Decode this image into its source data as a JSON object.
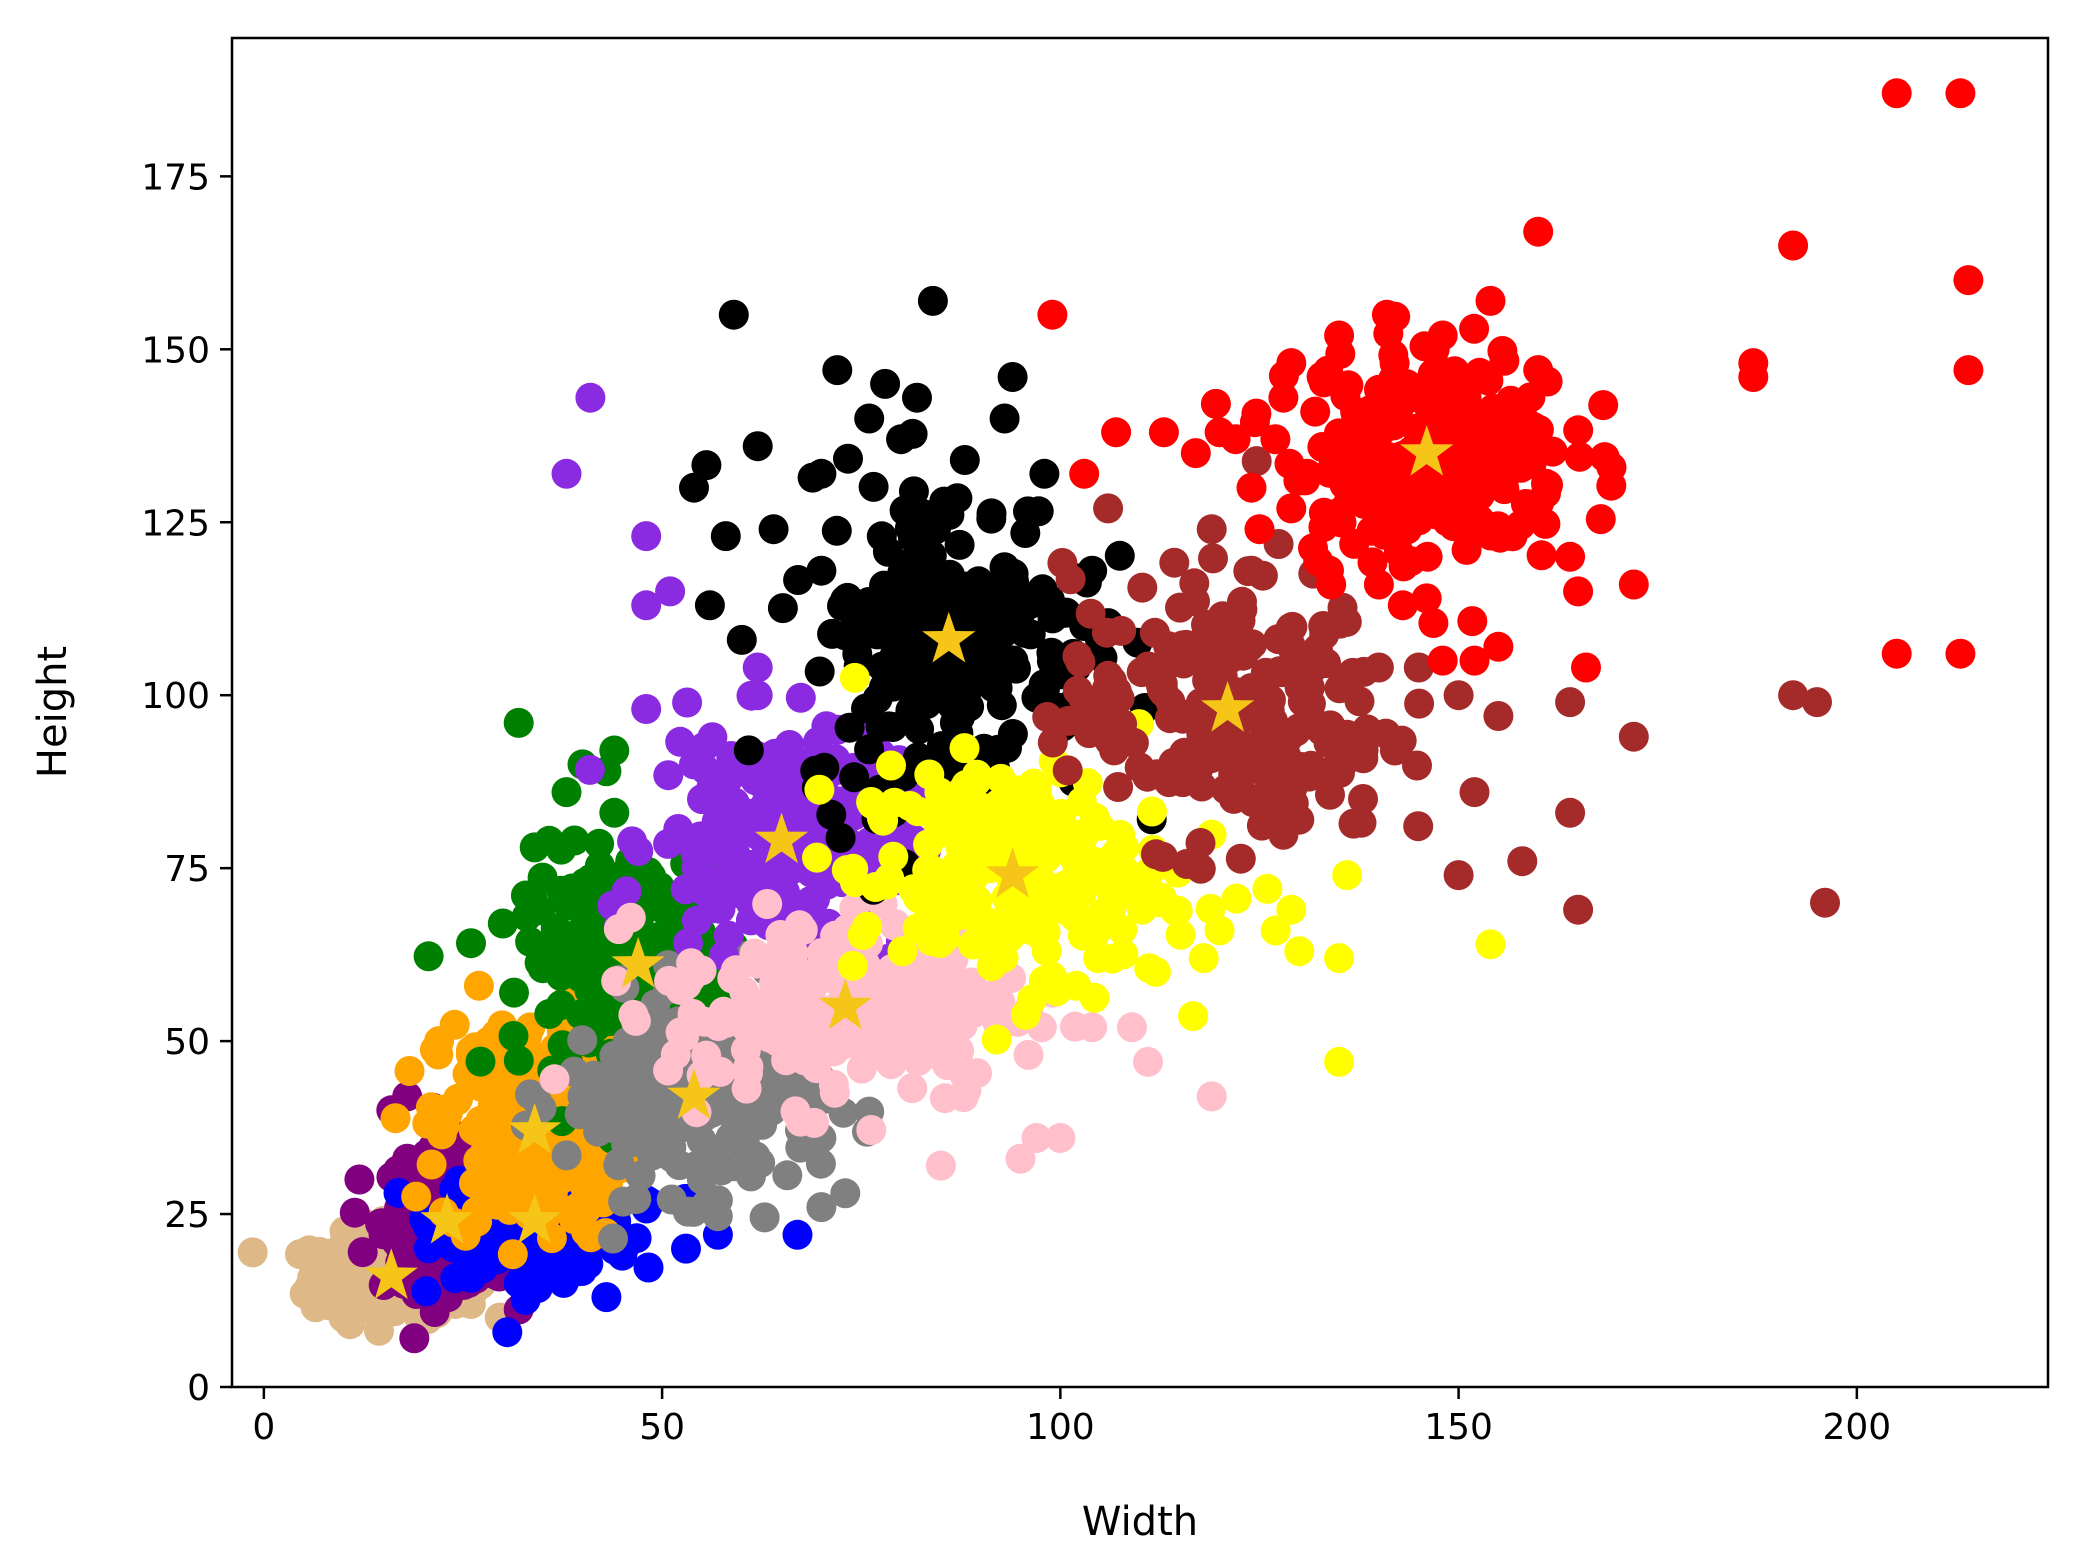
{
  "chart_data": {
    "type": "scatter",
    "title": "",
    "xlabel": "Width",
    "ylabel": "Height",
    "xlim": [
      -4,
      224
    ],
    "ylim": [
      0,
      195
    ],
    "xticks": [
      0,
      50,
      100,
      150,
      200
    ],
    "yticks": [
      0,
      25,
      50,
      75,
      100,
      125,
      150,
      175
    ],
    "grid": false,
    "legend": "none",
    "centroid_color": "#f5c518",
    "clusters": [
      {
        "color": "#deb887",
        "centroid": [
          16,
          16
        ],
        "spread": [
          5,
          3
        ],
        "points": [
          [
            7,
            16
          ],
          [
            9,
            13
          ],
          [
            10,
            10
          ],
          [
            12,
            18
          ],
          [
            14,
            20
          ],
          [
            18,
            19
          ],
          [
            20,
            10
          ],
          [
            22,
            14
          ],
          [
            24,
            12
          ],
          [
            26,
            12
          ],
          [
            15,
            24
          ]
        ]
      },
      {
        "color": "#800080",
        "centroid": [
          23,
          24
        ],
        "spread": [
          4,
          5
        ],
        "points": [
          [
            12,
            30
          ],
          [
            16,
            40
          ],
          [
            18,
            42
          ],
          [
            28,
            30
          ],
          [
            22,
            20
          ],
          [
            26,
            28
          ],
          [
            18,
            33
          ],
          [
            30,
            25
          ]
        ]
      },
      {
        "color": "#0000ff",
        "centroid": [
          34,
          24
        ],
        "spread": [
          6,
          4
        ],
        "points": [
          [
            43,
            13
          ],
          [
            45,
            19
          ],
          [
            48,
            27
          ],
          [
            53,
            20
          ],
          [
            57,
            22
          ],
          [
            67,
            22
          ],
          [
            32,
            15
          ],
          [
            40,
            27
          ]
        ]
      },
      {
        "color": "#ffa500",
        "centroid": [
          34,
          37
        ],
        "spread": [
          6,
          8
        ],
        "points": [
          [
            27,
            58
          ],
          [
            22,
            50
          ],
          [
            26,
            48
          ],
          [
            46,
            32
          ],
          [
            30,
            35
          ],
          [
            38,
            46
          ]
        ]
      },
      {
        "color": "#008000",
        "centroid": [
          47,
          61
        ],
        "spread": [
          7,
          8
        ],
        "points": [
          [
            32,
            96
          ],
          [
            38,
            86
          ],
          [
            40,
            90
          ],
          [
            43,
            89
          ],
          [
            44,
            92
          ],
          [
            34,
            78
          ],
          [
            39,
            79
          ],
          [
            44,
            83
          ],
          [
            30,
            67
          ],
          [
            33,
            68
          ],
          [
            46,
            76
          ],
          [
            56,
            64
          ]
        ]
      },
      {
        "color": "#808080",
        "centroid": [
          54,
          42
        ],
        "spread": [
          8,
          7
        ],
        "points": [
          [
            57,
            27
          ],
          [
            55,
            30
          ],
          [
            70,
            26
          ],
          [
            73,
            28
          ],
          [
            70,
            36
          ],
          [
            40,
            42
          ],
          [
            62,
            50
          ],
          [
            67,
            45
          ]
        ]
      },
      {
        "color": "#8a2be2",
        "centroid": [
          65,
          79
        ],
        "spread": [
          8,
          8
        ],
        "points": [
          [
            41,
            143
          ],
          [
            38,
            132
          ],
          [
            48,
            123
          ],
          [
            48,
            113
          ],
          [
            51,
            115
          ],
          [
            48,
            98
          ],
          [
            62,
            104
          ],
          [
            62,
            100
          ],
          [
            72,
            95
          ],
          [
            54,
            90
          ],
          [
            78,
            80
          ]
        ]
      },
      {
        "color": "#ffc0cb",
        "centroid": [
          73,
          55
        ],
        "spread": [
          11,
          7
        ],
        "points": [
          [
            85,
            32
          ],
          [
            95,
            33
          ],
          [
            97,
            36
          ],
          [
            100,
            36
          ],
          [
            104,
            52
          ],
          [
            109,
            52
          ],
          [
            119,
            42
          ],
          [
            111,
            47
          ],
          [
            96,
            48
          ],
          [
            92,
            55
          ],
          [
            88,
            45
          ],
          [
            99,
            57
          ]
        ]
      },
      {
        "color": "#000000",
        "centroid": [
          86,
          108
        ],
        "spread": [
          9,
          12
        ],
        "points": [
          [
            59,
            155
          ],
          [
            84,
            157
          ],
          [
            72,
            147
          ],
          [
            78,
            145
          ],
          [
            82,
            143
          ],
          [
            94,
            146
          ],
          [
            62,
            136
          ],
          [
            54,
            130
          ],
          [
            58,
            123
          ],
          [
            64,
            124
          ],
          [
            70,
            132
          ],
          [
            76,
            140
          ],
          [
            80,
            137
          ],
          [
            88,
            134
          ],
          [
            93,
            140
          ],
          [
            98,
            132
          ],
          [
            56,
            113
          ],
          [
            60,
            108
          ],
          [
            102,
            104
          ],
          [
            104,
            118
          ],
          [
            103,
            110
          ],
          [
            70,
            118
          ]
        ]
      },
      {
        "color": "#ffff00",
        "centroid": [
          94,
          74
        ],
        "spread": [
          10,
          8
        ],
        "points": [
          [
            136,
            74
          ],
          [
            135,
            62
          ],
          [
            130,
            63
          ],
          [
            129,
            69
          ],
          [
            135,
            47
          ],
          [
            154,
            64
          ],
          [
            126,
            72
          ],
          [
            118,
            62
          ],
          [
            112,
            60
          ],
          [
            120,
            66
          ],
          [
            108,
            78
          ],
          [
            102,
            58
          ]
        ]
      },
      {
        "color": "#a52a2a",
        "centroid": [
          121,
          98
        ],
        "spread": [
          10,
          10
        ],
        "points": [
          [
            106,
            127
          ],
          [
            119,
            124
          ],
          [
            124,
            118
          ],
          [
            133,
            110
          ],
          [
            140,
            104
          ],
          [
            145,
            104
          ],
          [
            150,
            100
          ],
          [
            155,
            97
          ],
          [
            164,
            99
          ],
          [
            172,
            94
          ],
          [
            164,
            83
          ],
          [
            152,
            86
          ],
          [
            150,
            74
          ],
          [
            158,
            76
          ],
          [
            165,
            69
          ],
          [
            196,
            70
          ],
          [
            192,
            100
          ],
          [
            195,
            99
          ],
          [
            142,
            92
          ],
          [
            138,
            85
          ],
          [
            130,
            82
          ],
          [
            112,
            77
          ],
          [
            125,
            85
          ]
        ]
      },
      {
        "color": "#ff0000",
        "centroid": [
          146,
          135
        ],
        "spread": [
          9,
          8
        ],
        "points": [
          [
            205,
            187
          ],
          [
            213,
            187
          ],
          [
            160,
            167
          ],
          [
            192,
            165
          ],
          [
            214,
            160
          ],
          [
            154,
            157
          ],
          [
            214,
            147
          ],
          [
            187,
            148
          ],
          [
            187,
            146
          ],
          [
            160,
            147
          ],
          [
            99,
            155
          ],
          [
            147,
            150
          ],
          [
            148,
            152
          ],
          [
            135,
            152
          ],
          [
            141,
            155
          ],
          [
            129,
            148
          ],
          [
            144,
            143
          ],
          [
            151,
            143
          ],
          [
            157,
            141
          ],
          [
            128,
            143
          ],
          [
            132,
            141
          ],
          [
            135,
            133
          ],
          [
            138,
            130
          ],
          [
            143,
            128
          ],
          [
            129,
            127
          ],
          [
            125,
            124
          ],
          [
            113,
            138
          ],
          [
            117,
            135
          ],
          [
            120,
            138
          ],
          [
            107,
            138
          ],
          [
            103,
            132
          ],
          [
            140,
            116
          ],
          [
            143,
            113
          ],
          [
            134,
            116
          ],
          [
            151,
            121
          ],
          [
            164,
            120
          ],
          [
            165,
            115
          ],
          [
            172,
            116
          ],
          [
            155,
            107
          ],
          [
            148,
            105
          ],
          [
            152,
            105
          ],
          [
            166,
            104
          ],
          [
            205,
            106
          ],
          [
            213,
            106
          ],
          [
            124,
            130
          ],
          [
            122,
            137
          ],
          [
            127,
            137
          ],
          [
            131,
            132
          ],
          [
            137,
            141
          ],
          [
            143,
            134
          ],
          [
            152,
            139
          ],
          [
            148,
            130
          ],
          [
            146,
            114
          ]
        ]
      }
    ]
  }
}
